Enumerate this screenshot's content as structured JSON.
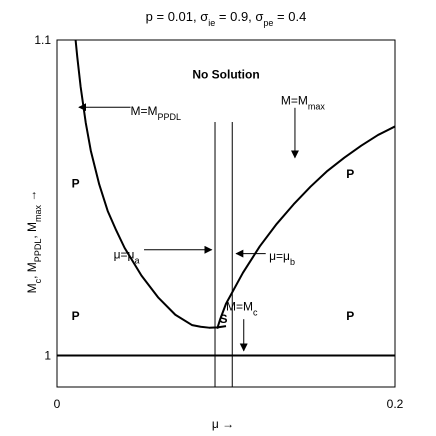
{
  "chart_data": {
    "type": "line",
    "title": {
      "text": "p = 0.01, σ",
      "parts": [
        {
          "base": "p = 0.01, σ",
          "sub": "ie"
        },
        {
          "base": " = 0.9, σ",
          "sub": "pe"
        },
        {
          "base": " = 0.4",
          "sub": ""
        }
      ]
    },
    "xlabel": "μ →",
    "ylabel": {
      "parts": [
        {
          "base": "M",
          "sub": "c"
        },
        {
          "base": ", M",
          "sub": "PPDL"
        },
        {
          "base": ", M",
          "sub": "max"
        },
        {
          "base": " →",
          "sub": ""
        }
      ]
    },
    "xlim": [
      0,
      0.2
    ],
    "ylim": [
      0.99,
      1.1
    ],
    "x_ticks": [
      {
        "value": 0,
        "label": "0"
      },
      {
        "value": 0.2,
        "label": "0.2"
      }
    ],
    "y_ticks": [
      {
        "value": 1.0,
        "label": "1"
      },
      {
        "value": 1.1,
        "label": "1.1"
      }
    ],
    "grid": false,
    "series": [
      {
        "name": "M=M_PPDL",
        "x": [
          0.011,
          0.012,
          0.014,
          0.017,
          0.02,
          0.025,
          0.03,
          0.035,
          0.04,
          0.05,
          0.06,
          0.07,
          0.08,
          0.085,
          0.09,
          0.095,
          0.1
        ],
        "y": [
          1.1,
          1.0946,
          1.0851,
          1.0738,
          1.0649,
          1.0542,
          1.0458,
          1.0397,
          1.0341,
          1.0253,
          1.0183,
          1.0129,
          1.0096,
          1.0091,
          1.0088,
          1.0089,
          1.0093
        ]
      },
      {
        "name": "M=M_max",
        "x": [
          0.0948,
          0.0965,
          0.1,
          0.11,
          0.12,
          0.13,
          0.14,
          0.15,
          0.16,
          0.17,
          0.18,
          0.19,
          0.2
        ],
        "y": [
          1.0085,
          1.0114,
          1.0164,
          1.0262,
          1.0346,
          1.0417,
          1.0479,
          1.0535,
          1.0585,
          1.0627,
          1.0665,
          1.0699,
          1.0726
        ]
      },
      {
        "name": "M=M_c",
        "x": [
          0,
          0.2
        ],
        "y": [
          1.0,
          1.0
        ]
      }
    ],
    "vlines": [
      {
        "name": "μ=μ_a",
        "x": 0.0935,
        "y0": 0.99,
        "y1": 1.074
      },
      {
        "name": "μ=μ_b",
        "x": 0.1037,
        "y0": 0.99,
        "y1": 1.074
      }
    ],
    "region_labels": [
      {
        "text": "No Solution",
        "x": 0.1,
        "y": 1.089,
        "weight": "bold"
      },
      {
        "text": "P",
        "x": 0.011,
        "y": 1.0545,
        "weight": "bold"
      },
      {
        "text": "P",
        "x": 0.011,
        "y": 1.0125,
        "weight": "bold"
      },
      {
        "text": "S",
        "x": 0.0985,
        "y": 1.0115,
        "weight": "bold"
      },
      {
        "text": "P",
        "x": 0.1735,
        "y": 1.0575,
        "weight": "bold"
      },
      {
        "text": "P",
        "x": 0.1735,
        "y": 1.0125,
        "weight": "bold"
      }
    ],
    "annotations": [
      {
        "id": "ann-ppdl",
        "base": "M=M",
        "sub": "PPDL",
        "text_x": 0.0435,
        "text_y": 1.0775,
        "arrow_from": [
          0.0435,
          1.0787
        ],
        "arrow_to": [
          0.013,
          1.0787
        ]
      },
      {
        "id": "ann-max",
        "base": "M=M",
        "sub": "max",
        "text_x": 0.1325,
        "text_y": 1.0808,
        "arrow_from": [
          0.1408,
          1.0785
        ],
        "arrow_to": [
          0.1408,
          1.0627
        ]
      },
      {
        "id": "ann-mua",
        "base": "μ=μ",
        "sub": "a",
        "text_x": 0.0335,
        "text_y": 1.032,
        "arrow_from": [
          0.0515,
          1.0335
        ],
        "arrow_to": [
          0.0915,
          1.0335
        ]
      },
      {
        "id": "ann-mub",
        "base": "μ=μ",
        "sub": "b",
        "text_x": 0.1255,
        "text_y": 1.0315,
        "arrow_from": [
          0.1235,
          1.0323
        ],
        "arrow_to": [
          0.106,
          1.0323
        ]
      },
      {
        "id": "ann-mc",
        "base": "M=M",
        "sub": "c",
        "text_x": 0.1,
        "text_y": 1.0155,
        "arrow_from": [
          0.1105,
          1.0115
        ],
        "arrow_to": [
          0.1105,
          1.0015
        ]
      }
    ]
  }
}
